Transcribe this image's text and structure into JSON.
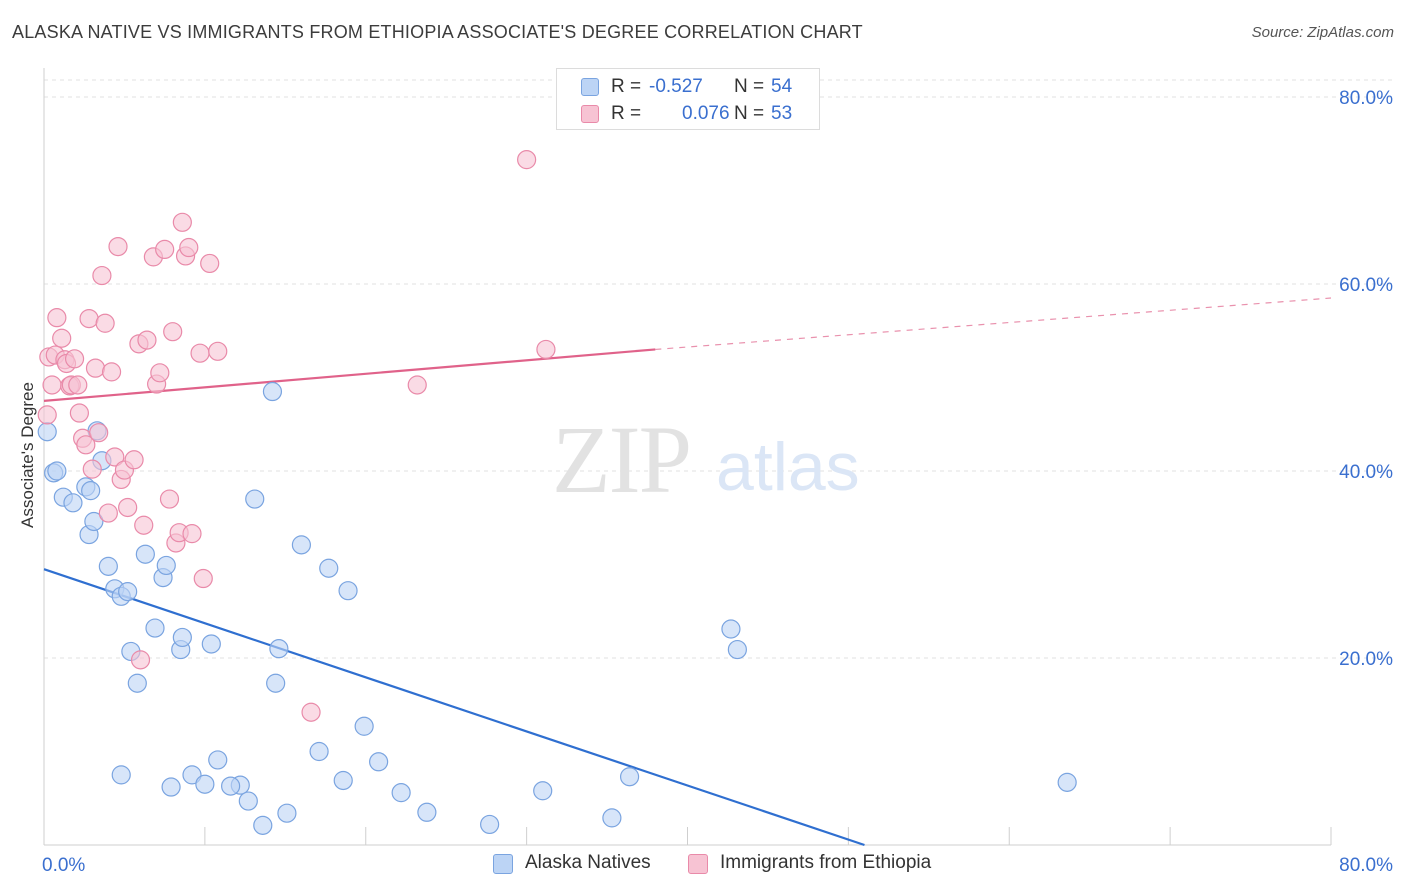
{
  "header": {
    "title": "ALASKA NATIVE VS IMMIGRANTS FROM ETHIOPIA ASSOCIATE'S DEGREE CORRELATION CHART",
    "source_label": "Source:",
    "source_value": "ZipAtlas.com"
  },
  "watermark": {
    "zip": "ZIP",
    "atlas": "atlas"
  },
  "legend_top": {
    "rows": [
      {
        "r_label": "R =",
        "r_value": "-0.527",
        "n_label": "N =",
        "n_value": "54"
      },
      {
        "r_label": "R =",
        "r_value": "0.076",
        "n_label": "N =",
        "n_value": "53"
      }
    ]
  },
  "legend_bottom": [
    "Alaska Natives",
    "Immigrants from Ethiopia"
  ],
  "colors": {
    "blue_fill": "#bcd4f5",
    "blue_stroke": "#7aa4e0",
    "blue_line": "#2f6fd0",
    "pink_fill": "#f7c3d3",
    "pink_stroke": "#e98aa9",
    "pink_line": "#e0628a",
    "tick_text": "#3a6fcf",
    "grid": "#e2e2e2"
  },
  "chart_data": {
    "type": "scatter",
    "title": "ALASKA NATIVE VS IMMIGRANTS FROM ETHIOPIA ASSOCIATE'S DEGREE CORRELATION CHART",
    "xlabel": "",
    "ylabel": "Associate's Degree",
    "xlim": [
      0,
      80
    ],
    "ylim": [
      0,
      80
    ],
    "x_tick_labels": [
      {
        "value": 0,
        "label": "0.0%"
      },
      {
        "value": 80,
        "label": "80.0%"
      }
    ],
    "y_tick_labels": [
      {
        "value": 20,
        "label": "20.0%"
      },
      {
        "value": 40,
        "label": "40.0%"
      },
      {
        "value": 60,
        "label": "60.0%"
      },
      {
        "value": 80,
        "label": "80.0%"
      }
    ],
    "grid": true,
    "legend_position": "bottom",
    "series": [
      {
        "name": "Alaska Natives",
        "color": "#bcd4f5",
        "r": -0.527,
        "n": 54,
        "trend": {
          "x0": 0,
          "y0": 29.5,
          "x1": 51.0,
          "y1": 0.0,
          "dashed_to": null
        },
        "points": [
          [
            0.2,
            44.2
          ],
          [
            0.6,
            39.8
          ],
          [
            0.8,
            40.0
          ],
          [
            1.2,
            37.2
          ],
          [
            1.8,
            36.6
          ],
          [
            2.6,
            38.3
          ],
          [
            2.8,
            33.2
          ],
          [
            2.9,
            37.9
          ],
          [
            3.1,
            34.6
          ],
          [
            3.3,
            44.3
          ],
          [
            3.6,
            41.1
          ],
          [
            4.0,
            29.8
          ],
          [
            4.4,
            27.4
          ],
          [
            4.8,
            26.6
          ],
          [
            5.2,
            27.1
          ],
          [
            5.4,
            20.7
          ],
          [
            5.8,
            17.3
          ],
          [
            6.3,
            31.1
          ],
          [
            6.9,
            23.2
          ],
          [
            7.4,
            28.6
          ],
          [
            7.6,
            29.9
          ],
          [
            8.5,
            20.9
          ],
          [
            8.6,
            22.2
          ],
          [
            10.4,
            21.5
          ],
          [
            10.8,
            9.1
          ],
          [
            12.2,
            6.4
          ],
          [
            12.7,
            4.7
          ],
          [
            13.1,
            37.0
          ],
          [
            13.6,
            2.1
          ],
          [
            14.2,
            48.5
          ],
          [
            14.4,
            17.3
          ],
          [
            14.6,
            21.0
          ],
          [
            15.1,
            3.4
          ],
          [
            16.0,
            32.1
          ],
          [
            17.1,
            10.0
          ],
          [
            17.7,
            29.6
          ],
          [
            18.6,
            6.9
          ],
          [
            18.9,
            27.2
          ],
          [
            19.9,
            12.7
          ],
          [
            20.8,
            8.9
          ],
          [
            22.2,
            5.6
          ],
          [
            23.8,
            3.5
          ],
          [
            27.7,
            2.2
          ],
          [
            31.0,
            5.8
          ],
          [
            35.3,
            2.9
          ],
          [
            36.4,
            7.3
          ],
          [
            42.7,
            23.1
          ],
          [
            43.1,
            20.9
          ],
          [
            63.6,
            6.7
          ],
          [
            4.8,
            7.5
          ],
          [
            7.9,
            6.2
          ],
          [
            9.2,
            7.5
          ],
          [
            10.0,
            6.5
          ],
          [
            11.6,
            6.3
          ]
        ]
      },
      {
        "name": "Immigrants from Ethiopia",
        "color": "#f7c3d3",
        "r": 0.076,
        "n": 53,
        "trend": {
          "x0": 0,
          "y0": 47.5,
          "x1": 38.0,
          "y1": 53.0,
          "dashed_to": {
            "x": 80,
            "y": 58.5
          }
        },
        "points": [
          [
            0.2,
            46.0
          ],
          [
            0.3,
            52.2
          ],
          [
            0.5,
            49.2
          ],
          [
            0.7,
            52.4
          ],
          [
            0.8,
            56.4
          ],
          [
            1.1,
            54.2
          ],
          [
            1.3,
            51.9
          ],
          [
            1.4,
            51.5
          ],
          [
            1.6,
            49.1
          ],
          [
            1.7,
            49.2
          ],
          [
            1.9,
            52.0
          ],
          [
            2.1,
            49.2
          ],
          [
            2.2,
            46.2
          ],
          [
            2.4,
            43.5
          ],
          [
            2.6,
            42.8
          ],
          [
            2.8,
            56.3
          ],
          [
            3.0,
            40.2
          ],
          [
            3.2,
            51.0
          ],
          [
            3.4,
            44.1
          ],
          [
            3.6,
            60.9
          ],
          [
            3.8,
            55.8
          ],
          [
            4.0,
            35.5
          ],
          [
            4.2,
            50.6
          ],
          [
            4.4,
            41.5
          ],
          [
            4.6,
            64.0
          ],
          [
            4.8,
            39.1
          ],
          [
            5.0,
            40.1
          ],
          [
            5.2,
            36.1
          ],
          [
            5.6,
            41.2
          ],
          [
            5.9,
            53.6
          ],
          [
            6.2,
            34.2
          ],
          [
            6.4,
            54.0
          ],
          [
            6.8,
            62.9
          ],
          [
            7.0,
            49.3
          ],
          [
            7.2,
            50.5
          ],
          [
            7.5,
            63.7
          ],
          [
            7.8,
            37.0
          ],
          [
            8.0,
            54.9
          ],
          [
            8.2,
            32.3
          ],
          [
            8.4,
            33.4
          ],
          [
            8.6,
            66.6
          ],
          [
            8.8,
            63.0
          ],
          [
            9.0,
            63.9
          ],
          [
            9.2,
            33.3
          ],
          [
            9.7,
            52.6
          ],
          [
            9.9,
            28.5
          ],
          [
            10.3,
            62.2
          ],
          [
            10.8,
            52.8
          ],
          [
            6.0,
            19.8
          ],
          [
            16.6,
            14.2
          ],
          [
            23.2,
            49.2
          ],
          [
            31.2,
            53.0
          ],
          [
            30.0,
            73.3
          ]
        ]
      }
    ]
  }
}
